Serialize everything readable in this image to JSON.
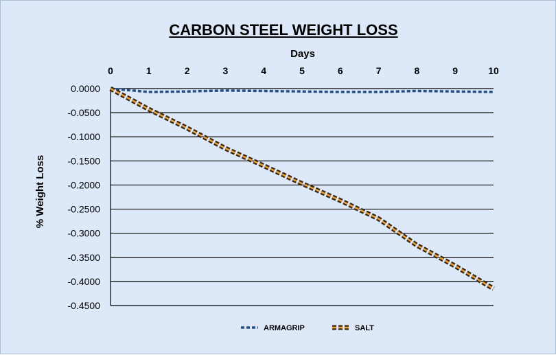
{
  "chart_data": {
    "type": "line",
    "title": "CARBON STEEL WEIGHT LOSS",
    "xlabel": "Days",
    "ylabel": "% Weight Loss",
    "x": [
      0,
      1,
      2,
      3,
      4,
      5,
      6,
      7,
      8,
      9,
      10
    ],
    "x_tick_labels": [
      "0",
      "1",
      "2",
      "3",
      "4",
      "5",
      "6",
      "7",
      "8",
      "9",
      "10"
    ],
    "y_tick_labels": [
      "0.0000",
      "-0.0500",
      "-0.1000",
      "-0.1500",
      "-0.2000",
      "-0.2500",
      "-0.3000",
      "-0.3500",
      "-0.4000",
      "-0.4500"
    ],
    "xlim": [
      0,
      10
    ],
    "ylim": [
      -0.45,
      0
    ],
    "x_axis_position": "top",
    "grid": "horizontal",
    "legend_position": "bottom",
    "series": [
      {
        "name": "ARMAGRIP",
        "color": "#1f4e8c",
        "style": "dashed",
        "values": [
          0.0,
          -0.007,
          -0.006,
          -0.004,
          -0.005,
          -0.006,
          -0.007,
          -0.007,
          -0.005,
          -0.006,
          -0.007
        ]
      },
      {
        "name": "SALT",
        "color": "#e8a13c",
        "outline_color": "#3a2610",
        "style": "dashed-double",
        "values": [
          0.0,
          -0.043,
          -0.082,
          -0.124,
          -0.16,
          -0.197,
          -0.232,
          -0.27,
          -0.325,
          -0.368,
          -0.415
        ]
      }
    ]
  }
}
